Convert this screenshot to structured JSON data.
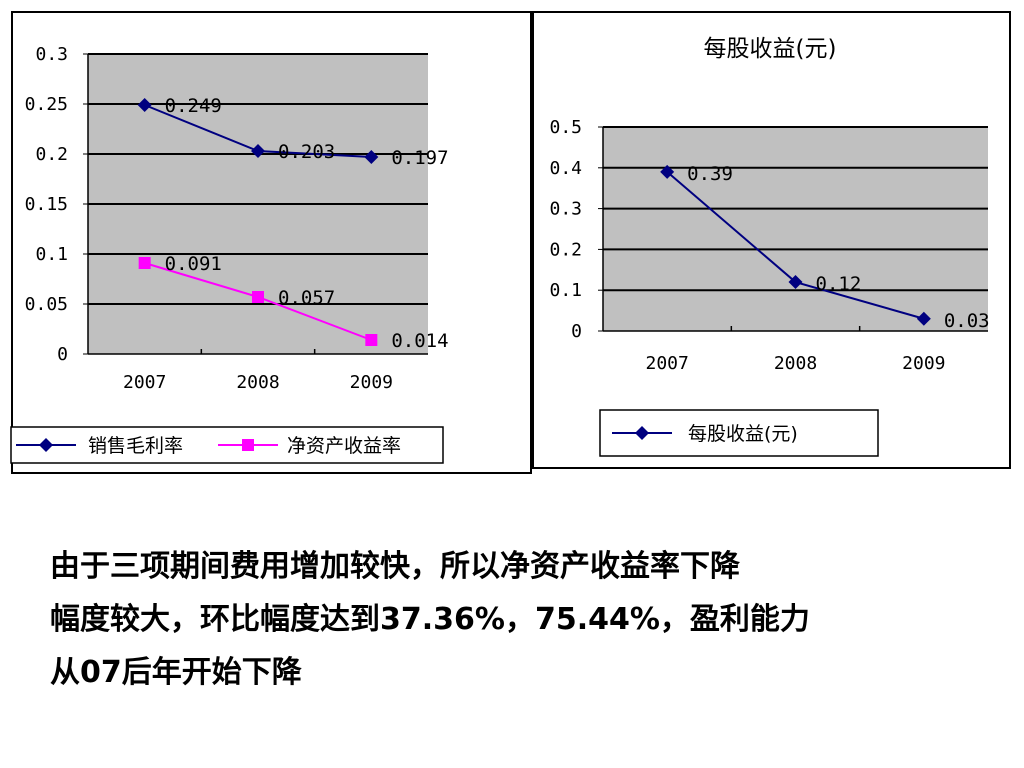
{
  "chart_data": [
    {
      "type": "line",
      "categories": [
        "2007",
        "2008",
        "2009"
      ],
      "ylim": [
        0,
        0.3
      ],
      "yticks": [
        "0",
        "0.05",
        "0.1",
        "0.15",
        "0.2",
        "0.25",
        "0.3"
      ],
      "grid": true,
      "legend_position": "bottom",
      "series": [
        {
          "name": "销售毛利率",
          "values": [
            0.249,
            0.203,
            0.197
          ],
          "labels": [
            "0.249",
            "0.203",
            "0.197"
          ],
          "color": "#000080",
          "marker": "diamond"
        },
        {
          "name": "净资产收益率",
          "values": [
            0.091,
            0.057,
            0.014
          ],
          "labels": [
            "0.091",
            "0.057",
            "0.014"
          ],
          "color": "#ff00ff",
          "marker": "square"
        }
      ]
    },
    {
      "type": "line",
      "title": "每股收益(元)",
      "categories": [
        "2007",
        "2008",
        "2009"
      ],
      "ylim": [
        0,
        0.5
      ],
      "yticks": [
        "0",
        "0.1",
        "0.2",
        "0.3",
        "0.4",
        "0.5"
      ],
      "grid": true,
      "legend_position": "bottom",
      "series": [
        {
          "name": "每股收益(元)",
          "values": [
            0.39,
            0.12,
            0.03
          ],
          "labels": [
            "0.39",
            "0.12",
            "0.03"
          ],
          "color": "#000080",
          "marker": "diamond"
        }
      ]
    }
  ],
  "caption": {
    "lines": [
      "由于三项期间费用增加较快，所以净资产收益率下降",
      "幅度较大，环比幅度达到37.36%，75.44%，盈利能力",
      "从07后年开始下降"
    ]
  },
  "colors": {
    "plot_background": "#c0c0c0"
  }
}
